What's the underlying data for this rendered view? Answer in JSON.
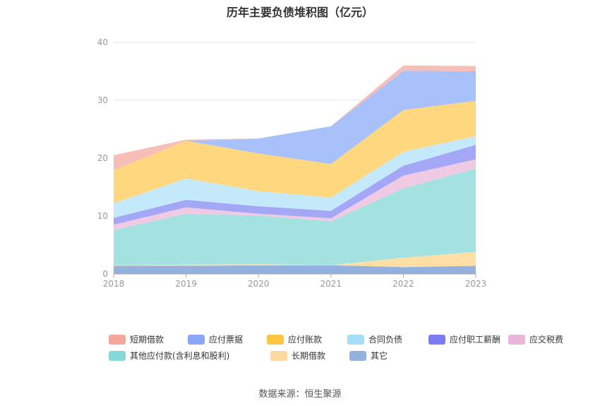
{
  "chart_data": {
    "type": "area",
    "title": "历年主要负债堆积图（亿元）",
    "source": "数据来源：恒生聚源",
    "x": [
      "2018",
      "2019",
      "2020",
      "2021",
      "2022",
      "2023"
    ],
    "ylim": [
      0,
      40
    ],
    "yticks": [
      "0",
      "10",
      "20",
      "30",
      "40"
    ],
    "grid": true,
    "legend_position": "bottom",
    "series": [
      {
        "name": "其它",
        "color": "#94b0dd",
        "values": [
          1.4,
          1.4,
          1.5,
          1.5,
          1.2,
          1.4
        ]
      },
      {
        "name": "长期借款",
        "color": "#ffdfa6",
        "values": [
          0.1,
          0.2,
          0.2,
          0.0,
          1.6,
          2.4
        ]
      },
      {
        "name": "其他应付款(含利息和股利)",
        "color": "#a4e2e1",
        "values": [
          6.1,
          8.8,
          8.4,
          7.6,
          12.0,
          14.4
        ]
      },
      {
        "name": "应交税费",
        "color": "#f0c9e3",
        "values": [
          0.9,
          1.1,
          0.3,
          0.5,
          2.2,
          1.6
        ]
      },
      {
        "name": "应付职工薪酬",
        "color": "#a3a7f5",
        "values": [
          1.2,
          1.3,
          1.3,
          1.3,
          1.7,
          2.5
        ]
      },
      {
        "name": "合同负债",
        "color": "#c3e9fb",
        "values": [
          2.5,
          3.7,
          2.6,
          2.3,
          2.4,
          1.5
        ]
      },
      {
        "name": "应付账款",
        "color": "#ffd77f",
        "values": [
          5.7,
          6.5,
          6.5,
          5.8,
          7.2,
          6.1
        ]
      },
      {
        "name": "应付票据",
        "color": "#a9c1fb",
        "values": [
          0.0,
          0.0,
          2.6,
          6.5,
          6.8,
          5.1
        ]
      },
      {
        "name": "短期借款",
        "color": "#f7bdb7",
        "values": [
          2.6,
          0.2,
          0.0,
          0.0,
          0.9,
          0.9
        ]
      }
    ],
    "legend": [
      {
        "name": "短期借款",
        "color": "#f4a69a"
      },
      {
        "name": "应付票据",
        "color": "#8aa6f8"
      },
      {
        "name": "应付账款",
        "color": "#fcc640"
      },
      {
        "name": "合同负债",
        "color": "#a6def9"
      },
      {
        "name": "应付职工薪酬",
        "color": "#7b7cf0"
      },
      {
        "name": "应交税费",
        "color": "#e9b5d8"
      },
      {
        "name": "其他应付款(含利息和股利)",
        "color": "#85d8d8"
      },
      {
        "name": "长期借款",
        "color": "#ffd8a0"
      },
      {
        "name": "其它",
        "color": "#94b0dd"
      }
    ]
  }
}
